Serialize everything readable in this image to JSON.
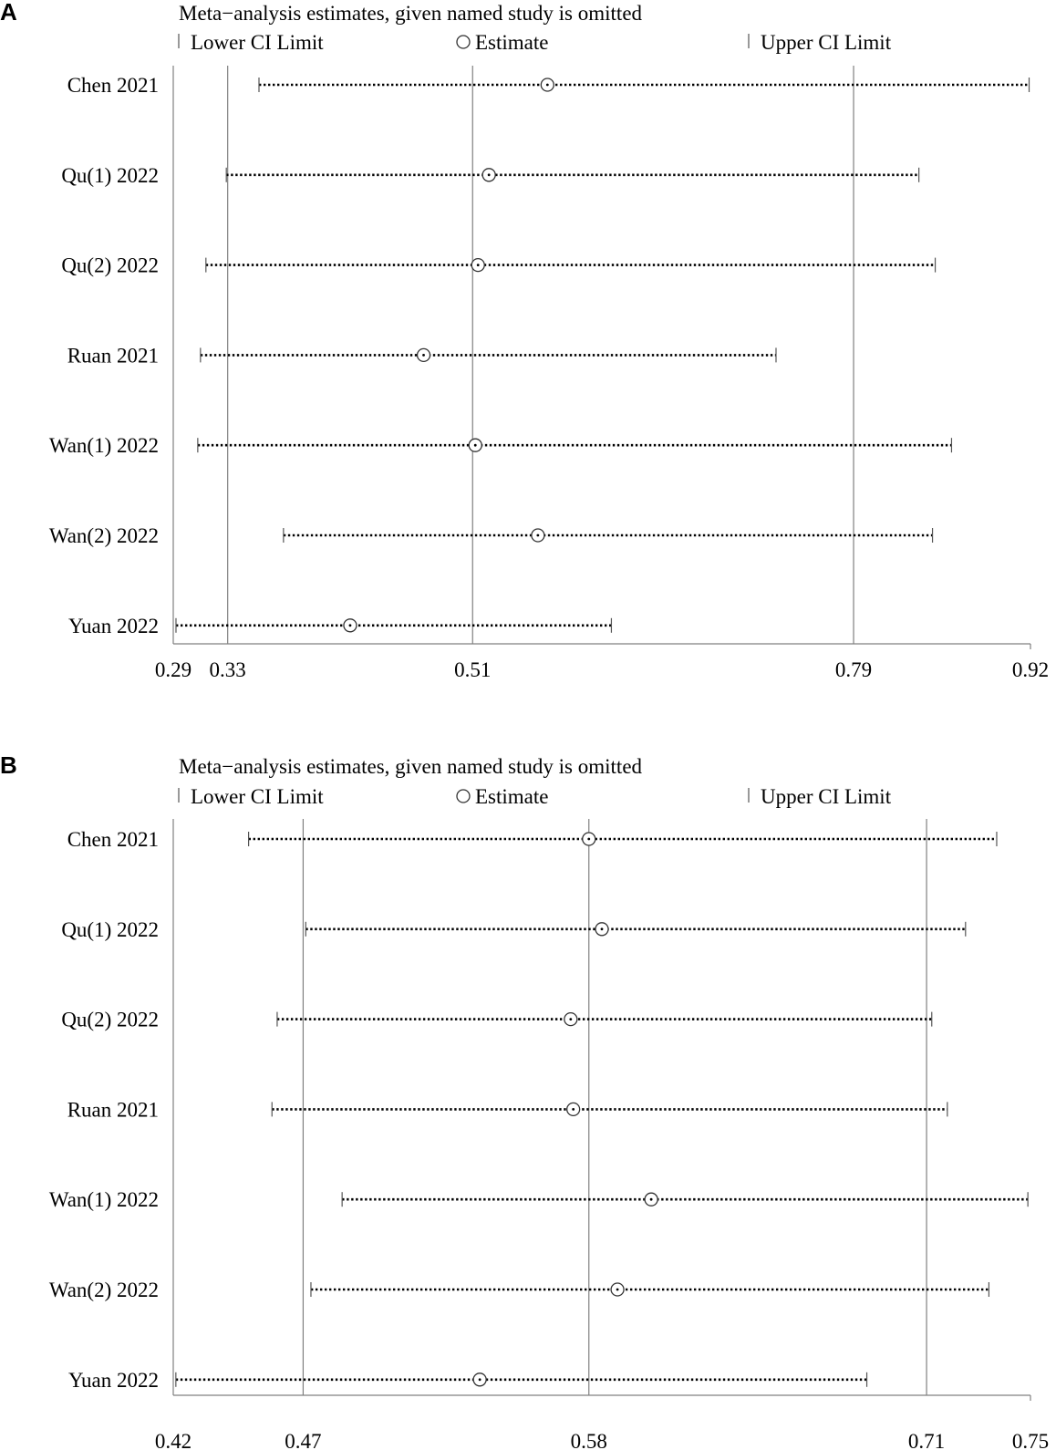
{
  "chart_data": [
    {
      "type": "forest",
      "panel": "A",
      "title": "Meta−analysis estimates, given named study is omitted",
      "legend": {
        "lower": "Lower CI Limit",
        "estimate": "Estimate",
        "upper": "Upper CI Limit",
        "placement": "top"
      },
      "xlim": [
        0.29,
        0.92
      ],
      "ticks": [
        0.29,
        0.33,
        0.51,
        0.79,
        0.92
      ],
      "tick_labels": [
        "0.29",
        "0.33",
        "0.51",
        "0.79",
        "0.92"
      ],
      "reference_lines": [
        0.33,
        0.51,
        0.79
      ],
      "studies": [
        {
          "name": "Chen 2021",
          "lower": 0.353,
          "estimate": 0.565,
          "upper": 0.919
        },
        {
          "name": "Qu(1) 2022",
          "lower": 0.329,
          "estimate": 0.522,
          "upper": 0.838
        },
        {
          "name": "Qu(2) 2022",
          "lower": 0.314,
          "estimate": 0.514,
          "upper": 0.85
        },
        {
          "name": "Ruan 2021",
          "lower": 0.31,
          "estimate": 0.474,
          "upper": 0.733
        },
        {
          "name": "Wan(1) 2022",
          "lower": 0.308,
          "estimate": 0.512,
          "upper": 0.862
        },
        {
          "name": "Wan(2) 2022",
          "lower": 0.371,
          "estimate": 0.558,
          "upper": 0.848
        },
        {
          "name": "Yuan 2022",
          "lower": 0.292,
          "estimate": 0.42,
          "upper": 0.612
        }
      ]
    },
    {
      "type": "forest",
      "panel": "B",
      "title": "Meta−analysis estimates, given named study is omitted",
      "legend": {
        "lower": "Lower CI Limit",
        "estimate": "Estimate",
        "upper": "Upper CI Limit",
        "placement": "top"
      },
      "xlim": [
        0.42,
        0.75
      ],
      "ticks": [
        0.42,
        0.47,
        0.58,
        0.71,
        0.75
      ],
      "tick_labels": [
        "0.42",
        "0.47",
        "0.58",
        "0.71",
        "0.75"
      ],
      "reference_lines": [
        0.47,
        0.58,
        0.71
      ],
      "studies": [
        {
          "name": "Chen 2021",
          "lower": 0.449,
          "estimate": 0.58,
          "upper": 0.737
        },
        {
          "name": "Qu(1) 2022",
          "lower": 0.471,
          "estimate": 0.585,
          "upper": 0.725
        },
        {
          "name": "Qu(2) 2022",
          "lower": 0.46,
          "estimate": 0.573,
          "upper": 0.712
        },
        {
          "name": "Ruan 2021",
          "lower": 0.458,
          "estimate": 0.574,
          "upper": 0.718
        },
        {
          "name": "Wan(1) 2022",
          "lower": 0.485,
          "estimate": 0.604,
          "upper": 0.749
        },
        {
          "name": "Wan(2) 2022",
          "lower": 0.473,
          "estimate": 0.591,
          "upper": 0.734
        },
        {
          "name": "Yuan 2022",
          "lower": 0.421,
          "estimate": 0.538,
          "upper": 0.687
        }
      ]
    }
  ]
}
